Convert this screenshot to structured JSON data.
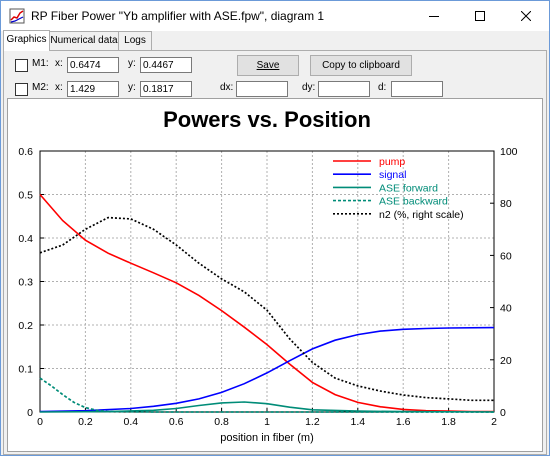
{
  "window": {
    "title": "RP Fiber Power \"Yb amplifier with ASE.fpw\", diagram 1",
    "controls": [
      "minimize-icon",
      "maximize-icon",
      "close-icon"
    ]
  },
  "tabs": [
    {
      "label": "Graphics",
      "active": true
    },
    {
      "label": "Numerical data",
      "active": false
    },
    {
      "label": "Logs",
      "active": false
    }
  ],
  "markers": {
    "m1": {
      "label": "M1:",
      "checked": false,
      "x_label": "x:",
      "x": "0.6474",
      "y_label": "y:",
      "y": "0.4467"
    },
    "m2": {
      "label": "M2:",
      "checked": false,
      "x_label": "x:",
      "x": "1.429",
      "y_label": "y:",
      "y": "0.1817"
    }
  },
  "buttons": {
    "save": "Save",
    "copy": "Copy to clipboard"
  },
  "deltas": {
    "dx_label": "dx:",
    "dx": "",
    "dy_label": "dy:",
    "dy": "",
    "d_label": "d:",
    "d": ""
  },
  "chart_data": {
    "type": "line",
    "title": "Powers vs. Position",
    "xlabel": "position in fiber (m)",
    "ylabel": "",
    "xlim": [
      0,
      2
    ],
    "ylim": [
      0,
      0.6
    ],
    "y2lim": [
      0,
      100
    ],
    "xticks": [
      "0",
      "0.2",
      "0.4",
      "0.6",
      "0.8",
      "1",
      "1.2",
      "1.4",
      "1.6",
      "1.8",
      "2"
    ],
    "yticks": [
      "0",
      "0.1",
      "0.2",
      "0.3",
      "0.4",
      "0.5",
      "0.6"
    ],
    "y2ticks": [
      "0",
      "20",
      "40",
      "60",
      "80",
      "100"
    ],
    "grid": true,
    "legend_position": "top-right",
    "series": [
      {
        "name": "pump",
        "color": "#ff0000",
        "dash": "solid",
        "axis": "left",
        "points": [
          [
            0,
            0.5
          ],
          [
            0.1,
            0.44
          ],
          [
            0.2,
            0.395
          ],
          [
            0.3,
            0.365
          ],
          [
            0.4,
            0.342
          ],
          [
            0.5,
            0.32
          ],
          [
            0.6,
            0.297
          ],
          [
            0.7,
            0.268
          ],
          [
            0.8,
            0.233
          ],
          [
            0.9,
            0.195
          ],
          [
            1.0,
            0.155
          ],
          [
            1.1,
            0.11
          ],
          [
            1.2,
            0.068
          ],
          [
            1.3,
            0.04
          ],
          [
            1.4,
            0.022
          ],
          [
            1.5,
            0.012
          ],
          [
            1.6,
            0.006
          ],
          [
            1.7,
            0.003
          ],
          [
            1.8,
            0.002
          ],
          [
            1.9,
            0.001
          ],
          [
            2.0,
            0.001
          ]
        ]
      },
      {
        "name": "signal",
        "color": "#0000ff",
        "dash": "solid",
        "axis": "left",
        "points": [
          [
            0,
            0.001
          ],
          [
            0.2,
            0.003
          ],
          [
            0.4,
            0.008
          ],
          [
            0.5,
            0.013
          ],
          [
            0.6,
            0.02
          ],
          [
            0.7,
            0.03
          ],
          [
            0.8,
            0.045
          ],
          [
            0.9,
            0.065
          ],
          [
            1.0,
            0.09
          ],
          [
            1.1,
            0.118
          ],
          [
            1.2,
            0.145
          ],
          [
            1.3,
            0.165
          ],
          [
            1.4,
            0.178
          ],
          [
            1.5,
            0.186
          ],
          [
            1.6,
            0.19
          ],
          [
            1.7,
            0.192
          ],
          [
            1.8,
            0.193
          ],
          [
            2.0,
            0.194
          ]
        ]
      },
      {
        "name": "ASE forward",
        "color": "#008c78",
        "dash": "solid",
        "axis": "left",
        "points": [
          [
            0,
            0.0
          ],
          [
            0.3,
            0.001
          ],
          [
            0.5,
            0.004
          ],
          [
            0.6,
            0.008
          ],
          [
            0.7,
            0.015
          ],
          [
            0.8,
            0.021
          ],
          [
            0.9,
            0.023
          ],
          [
            1.0,
            0.019
          ],
          [
            1.1,
            0.011
          ],
          [
            1.2,
            0.005
          ],
          [
            1.4,
            0.002
          ],
          [
            1.6,
            0.001
          ],
          [
            2.0,
            0.0
          ]
        ]
      },
      {
        "name": "ASE backward",
        "color": "#008c78",
        "dash": "dashed",
        "axis": "left",
        "points": [
          [
            0,
            0.078
          ],
          [
            0.05,
            0.06
          ],
          [
            0.1,
            0.04
          ],
          [
            0.15,
            0.022
          ],
          [
            0.2,
            0.01
          ],
          [
            0.25,
            0.004
          ],
          [
            0.3,
            0.001
          ],
          [
            0.5,
            0.0
          ],
          [
            2.0,
            0.0
          ]
        ]
      },
      {
        "name": "n2 (%, right scale)",
        "color": "#000000",
        "dash": "dotted",
        "axis": "right",
        "points": [
          [
            0,
            61
          ],
          [
            0.1,
            64
          ],
          [
            0.2,
            70
          ],
          [
            0.3,
            74.5
          ],
          [
            0.4,
            74
          ],
          [
            0.5,
            70
          ],
          [
            0.6,
            64
          ],
          [
            0.7,
            57
          ],
          [
            0.8,
            51
          ],
          [
            0.9,
            46
          ],
          [
            1.0,
            39
          ],
          [
            1.1,
            28
          ],
          [
            1.2,
            19
          ],
          [
            1.3,
            13
          ],
          [
            1.4,
            10
          ],
          [
            1.5,
            8
          ],
          [
            1.6,
            6.5
          ],
          [
            1.7,
            5.5
          ],
          [
            1.8,
            5
          ],
          [
            1.9,
            4.5
          ],
          [
            2.0,
            4.5
          ]
        ]
      }
    ]
  }
}
